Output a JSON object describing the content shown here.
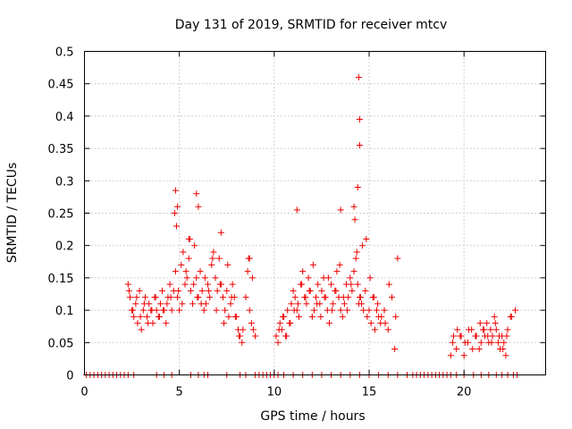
{
  "chart_data": {
    "type": "scatter",
    "title": "Day 131 of 2019, SRMTID for receiver mtcv",
    "xlabel": "GPS time / hours",
    "ylabel": "SRMTID / TECUs",
    "xlim": [
      0,
      24.3
    ],
    "ylim": [
      0,
      0.5
    ],
    "x_ticks": [
      0,
      5,
      10,
      15,
      20
    ],
    "x_tick_labels": [
      "0",
      "5",
      "10",
      "15",
      "20"
    ],
    "y_ticks": [
      0,
      0.05,
      0.1,
      0.15,
      0.2,
      0.25,
      0.3,
      0.35,
      0.4,
      0.45,
      0.5
    ],
    "y_tick_labels": [
      "0",
      "0.05",
      "0.1",
      "0.15",
      "0.2",
      "0.25",
      "0.3",
      "0.35",
      "0.4",
      "0.45",
      "0.5"
    ],
    "grid": true,
    "marker": "plus",
    "color": "#ee0000",
    "series": [
      {
        "name": "SRMTID",
        "x": [
          2.3,
          2.4,
          2.5,
          2.6,
          2.7,
          2.8,
          2.9,
          3.0,
          3.1,
          3.2,
          3.3,
          3.4,
          3.5,
          3.6,
          3.7,
          3.8,
          3.9,
          4.0,
          4.1,
          4.2,
          4.3,
          4.4,
          4.5,
          4.6,
          4.7,
          4.8,
          4.9,
          5.0,
          5.1,
          5.2,
          5.3,
          5.4,
          5.5,
          5.6,
          5.7,
          5.8,
          5.9,
          6.0,
          6.1,
          6.2,
          6.3,
          6.4,
          6.5,
          6.6,
          6.7,
          6.8,
          6.9,
          7.0,
          7.1,
          7.2,
          7.3,
          7.4,
          7.5,
          7.6,
          7.7,
          7.8,
          7.9,
          8.0,
          8.1,
          8.2,
          8.3,
          8.5,
          8.6,
          8.7,
          8.8,
          8.9,
          9.0,
          10.1,
          10.2,
          10.3,
          10.4,
          10.5,
          10.6,
          10.7,
          10.8,
          10.9,
          11.0,
          11.1,
          11.2,
          11.3,
          11.4,
          11.5,
          11.6,
          11.7,
          11.8,
          11.9,
          12.0,
          12.1,
          12.2,
          12.3,
          12.4,
          12.5,
          12.6,
          12.7,
          12.8,
          12.9,
          13.0,
          13.1,
          13.2,
          13.3,
          13.4,
          13.5,
          13.6,
          13.7,
          13.8,
          13.9,
          14.0,
          14.1,
          14.2,
          14.3,
          14.4,
          14.5,
          14.6,
          14.7,
          14.8,
          14.9,
          15.0,
          15.1,
          15.2,
          15.3,
          15.4,
          15.5,
          15.6,
          15.8,
          16.0,
          16.2,
          16.4,
          19.3,
          19.4,
          19.6,
          19.8,
          20.0,
          20.2,
          20.4,
          20.6,
          20.8,
          20.9,
          21.0,
          21.1,
          21.2,
          21.3,
          21.4,
          21.5,
          21.6,
          21.7,
          21.8,
          21.9,
          22.0,
          22.1,
          22.2,
          22.3,
          22.5,
          22.7,
          2.35,
          2.55,
          2.75,
          2.95,
          3.15,
          3.35,
          3.55,
          3.75,
          3.95,
          4.15,
          4.35,
          4.55,
          4.75,
          4.85,
          4.95,
          5.15,
          5.35,
          5.55,
          5.75,
          5.95,
          6.15,
          6.35,
          6.55,
          6.75,
          6.95,
          7.15,
          7.35,
          7.55,
          7.75,
          7.95,
          8.15,
          8.35,
          8.65,
          8.85,
          10.25,
          10.45,
          10.65,
          10.85,
          11.05,
          11.25,
          11.45,
          11.65,
          11.85,
          12.05,
          12.25,
          12.45,
          12.65,
          12.85,
          13.05,
          13.25,
          13.45,
          13.65,
          13.85,
          14.05,
          14.25,
          14.35,
          14.45,
          14.55,
          14.65,
          14.85,
          15.05,
          15.25,
          15.45,
          15.65,
          15.85,
          16.05,
          16.35,
          19.45,
          19.65,
          19.85,
          20.05,
          20.25,
          20.45,
          20.65,
          20.85,
          21.05,
          21.25,
          21.45,
          21.65,
          21.85,
          22.05,
          22.25,
          22.45,
          14.4,
          14.45,
          14.5,
          14.5,
          4.8,
          5.9,
          4.9,
          6.0,
          11.2,
          13.5,
          14.2,
          7.2,
          8.7,
          16.5,
          5.5
        ],
        "y": [
          0.14,
          0.12,
          0.1,
          0.09,
          0.11,
          0.08,
          0.13,
          0.07,
          0.1,
          0.12,
          0.09,
          0.11,
          0.1,
          0.08,
          0.12,
          0.1,
          0.09,
          0.11,
          0.13,
          0.1,
          0.08,
          0.12,
          0.14,
          0.1,
          0.13,
          0.16,
          0.12,
          0.1,
          0.17,
          0.19,
          0.14,
          0.15,
          0.18,
          0.13,
          0.11,
          0.2,
          0.15,
          0.12,
          0.16,
          0.13,
          0.1,
          0.11,
          0.14,
          0.12,
          0.17,
          0.19,
          0.15,
          0.13,
          0.18,
          0.14,
          0.12,
          0.1,
          0.13,
          0.09,
          0.11,
          0.14,
          0.12,
          0.09,
          0.07,
          0.06,
          0.05,
          0.12,
          0.16,
          0.1,
          0.08,
          0.07,
          0.06,
          0.06,
          0.05,
          0.08,
          0.07,
          0.09,
          0.06,
          0.1,
          0.08,
          0.11,
          0.13,
          0.12,
          0.1,
          0.09,
          0.14,
          0.16,
          0.12,
          0.11,
          0.15,
          0.13,
          0.09,
          0.1,
          0.12,
          0.14,
          0.11,
          0.13,
          0.15,
          0.12,
          0.1,
          0.08,
          0.14,
          0.11,
          0.13,
          0.16,
          0.12,
          0.1,
          0.09,
          0.11,
          0.14,
          0.12,
          0.15,
          0.13,
          0.16,
          0.18,
          0.14,
          0.12,
          0.11,
          0.1,
          0.13,
          0.09,
          0.1,
          0.08,
          0.12,
          0.07,
          0.1,
          0.09,
          0.08,
          0.1,
          0.07,
          0.12,
          0.09,
          0.03,
          0.05,
          0.04,
          0.06,
          0.03,
          0.05,
          0.07,
          0.06,
          0.04,
          0.05,
          0.07,
          0.06,
          0.08,
          0.05,
          0.07,
          0.06,
          0.09,
          0.07,
          0.05,
          0.04,
          0.06,
          0.05,
          0.03,
          0.07,
          0.09,
          0.1,
          0.13,
          0.1,
          0.12,
          0.09,
          0.11,
          0.08,
          0.1,
          0.12,
          0.09,
          0.1,
          0.11,
          0.12,
          0.25,
          0.23,
          0.13,
          0.11,
          0.16,
          0.21,
          0.14,
          0.12,
          0.11,
          0.15,
          0.13,
          0.18,
          0.1,
          0.14,
          0.08,
          0.17,
          0.12,
          0.09,
          0.06,
          0.07,
          0.18,
          0.15,
          0.07,
          0.09,
          0.06,
          0.08,
          0.1,
          0.11,
          0.14,
          0.12,
          0.13,
          0.17,
          0.11,
          0.09,
          0.12,
          0.15,
          0.1,
          0.13,
          0.17,
          0.12,
          0.1,
          0.14,
          0.24,
          0.19,
          0.11,
          0.12,
          0.2,
          0.21,
          0.15,
          0.12,
          0.11,
          0.09,
          0.08,
          0.14,
          0.04,
          0.06,
          0.07,
          0.06,
          0.05,
          0.07,
          0.04,
          0.06,
          0.08,
          0.07,
          0.06,
          0.05,
          0.08,
          0.06,
          0.04,
          0.06,
          0.09,
          0.29,
          0.46,
          0.395,
          0.355,
          0.285,
          0.28,
          0.26,
          0.26,
          0.255,
          0.255,
          0.26,
          0.22,
          0.18,
          0.18,
          0.21
        ],
        "zero_x": [
          0.1,
          0.3,
          0.5,
          0.7,
          0.9,
          1.1,
          1.3,
          1.5,
          1.7,
          1.9,
          2.1,
          2.3,
          2.6,
          3.8,
          4.2,
          4.6,
          5.6,
          6.0,
          6.3,
          6.5,
          7.5,
          8.2,
          8.5,
          9.0,
          9.2,
          9.4,
          9.6,
          9.8,
          10.0,
          10.2,
          10.5,
          11.0,
          11.5,
          12.0,
          12.5,
          13.0,
          13.5,
          14.0,
          14.5,
          15.0,
          15.5,
          16.0,
          16.5,
          17.0,
          17.3,
          17.5,
          17.7,
          17.9,
          18.1,
          18.3,
          18.5,
          18.7,
          18.9,
          19.1,
          19.3,
          19.6,
          20.0,
          20.5,
          20.9,
          21.3,
          21.7,
          22.0,
          22.3,
          22.6,
          22.8
        ]
      }
    ]
  }
}
